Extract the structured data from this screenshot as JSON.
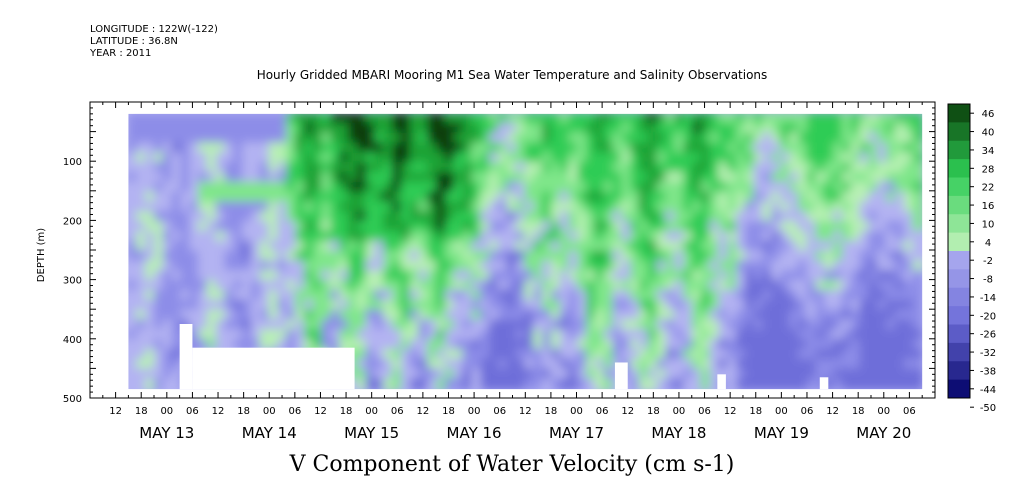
{
  "header": {
    "longitude": "LONGITUDE : 122W(-122)",
    "latitude": "LATITUDE : 36.8N",
    "year": "YEAR : 2011"
  },
  "chart_data": {
    "type": "heatmap",
    "title": "Hourly Gridded MBARI Mooring M1 Sea Water Temperature and Salinity Observations",
    "xlabel": "V Component of Water Velocity (cm s-1)",
    "ylabel": "DEPTH (m)",
    "x_axis": {
      "start": "2011-05-12T06:00",
      "end": "2011-05-20T12:00",
      "hour_tick_labels": [
        "12",
        "18",
        "00",
        "06",
        "12",
        "18",
        "00",
        "06",
        "12",
        "18",
        "00",
        "06",
        "12",
        "18",
        "00",
        "06",
        "12",
        "18",
        "00",
        "06",
        "12",
        "18",
        "00",
        "06",
        "12",
        "18",
        "00",
        "06",
        "12",
        "18",
        "00",
        "06"
      ],
      "day_labels": [
        "MAY 13",
        "MAY 14",
        "MAY 15",
        "MAY 16",
        "MAY 17",
        "MAY 18",
        "MAY 19",
        "MAY 20"
      ]
    },
    "y_axis": {
      "range": [
        500,
        0
      ],
      "inverted": true,
      "tick_labels": [
        "100",
        "200",
        "300",
        "400",
        "500"
      ]
    },
    "data_extent": {
      "time_start": "2011-05-12T15:00",
      "time_end": "2011-05-20T09:00",
      "depth_min": 20,
      "depth_max": 485
    },
    "colorbar": {
      "levels": [
        46,
        40,
        34,
        28,
        22,
        16,
        10,
        4,
        -2,
        -8,
        -14,
        -20,
        -26,
        -32,
        -38,
        -44,
        -50
      ],
      "labels": [
        "46",
        "40",
        "34",
        "28",
        "22",
        "16",
        "10",
        "4",
        "-2",
        "-8",
        "-14",
        "-20",
        "-26",
        "-32",
        "-38",
        "-44",
        "-50"
      ]
    },
    "field_regimes": [
      {
        "period": "MAY 12 15h - MAY 14 21h",
        "value_range": [
          -14,
          10
        ],
        "description_kind": "mixed weak"
      },
      {
        "period": "MAY 15 - MAY 16",
        "value_range": [
          10,
          40
        ],
        "description_kind": "strong positive upper"
      },
      {
        "period": "MAY 16 - MAY 17",
        "value_range": [
          -14,
          22
        ],
        "description_kind": "mixed"
      },
      {
        "period": "MAY 17 - MAY 18",
        "value_range": [
          4,
          34
        ],
        "description_kind": "positive upper"
      },
      {
        "period": "MAY 18 - MAY 20",
        "value_range": [
          -20,
          22
        ],
        "description_kind": "negative lower"
      }
    ],
    "gaps": [
      {
        "time_start": "2011-05-13T06:00",
        "time_end": "2011-05-14T20:00",
        "depth_min": 415,
        "depth_max": 485
      },
      {
        "time_start": "2011-05-13T03:00",
        "time_end": "2011-05-13T06:00",
        "depth_min": 375,
        "depth_max": 485
      },
      {
        "time_start": "2011-05-17T09:00",
        "time_end": "2011-05-17T12:00",
        "depth_min": 440,
        "depth_max": 485
      },
      {
        "time_start": "2011-05-18T09:00",
        "time_end": "2011-05-18T11:00",
        "depth_min": 460,
        "depth_max": 485
      },
      {
        "time_start": "2011-05-19T09:00",
        "time_end": "2011-05-19T11:00",
        "depth_min": 465,
        "depth_max": 485
      }
    ],
    "colors": {
      "pos_very_strong": "#0a3d0a",
      "pos_strong": "#1aa335",
      "pos_med": "#2ecc55",
      "pos_weak": "#7fe68a",
      "pos_faint": "#b8f0b4",
      "neg_faint": "#b3b3f2",
      "neg_weak": "#8d8de8",
      "neg_med": "#6e6ed9",
      "neg_strong": "#3232b8",
      "neg_very_strong": "#000066"
    }
  }
}
